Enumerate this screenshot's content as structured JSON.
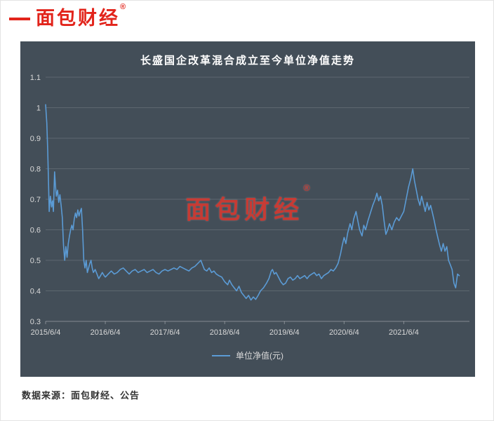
{
  "logo": {
    "text": "面包财经",
    "reg_mark": "®"
  },
  "watermark": {
    "text": "面包财经",
    "reg_mark": "®"
  },
  "footer": {
    "source_text": "数据来源：面包财经、公告"
  },
  "chart_data": {
    "type": "line",
    "title": "长盛国企改革混合成立至今单位净值走势",
    "xlabel": "",
    "ylabel": "",
    "ylim": [
      0.3,
      1.1
    ],
    "xlim": [
      0,
      7.1
    ],
    "grid": true,
    "legend_position": "bottom",
    "panel_bg": "#434e58",
    "line_color": "#5b9bd5",
    "grid_color": "rgba(255,255,255,0.14)",
    "axis_color": "rgba(255,255,255,0.35)",
    "text_color": "#d9d9d9",
    "y_ticks": [
      {
        "v": 0.3,
        "label": "0.3"
      },
      {
        "v": 0.4,
        "label": "0.4"
      },
      {
        "v": 0.5,
        "label": "0.5"
      },
      {
        "v": 0.6,
        "label": "0.6"
      },
      {
        "v": 0.7,
        "label": "0.7"
      },
      {
        "v": 0.8,
        "label": "0.8"
      },
      {
        "v": 0.9,
        "label": "0.9"
      },
      {
        "v": 1.0,
        "label": "1"
      },
      {
        "v": 1.1,
        "label": "1.1"
      }
    ],
    "x_ticks": [
      {
        "t": 0,
        "label": "2015/6/4"
      },
      {
        "t": 1,
        "label": "2016/6/4"
      },
      {
        "t": 2,
        "label": "2017/6/4"
      },
      {
        "t": 3,
        "label": "2018/6/4"
      },
      {
        "t": 4,
        "label": "2019/6/4"
      },
      {
        "t": 5,
        "label": "2020/6/4"
      },
      {
        "t": 6,
        "label": "2021/6/4"
      }
    ],
    "series": [
      {
        "name": "单位净值(元)",
        "points": [
          [
            0,
            1.01
          ],
          [
            0.02,
            0.95
          ],
          [
            0.035,
            0.86
          ],
          [
            0.05,
            0.74
          ],
          [
            0.06,
            0.66
          ],
          [
            0.08,
            0.71
          ],
          [
            0.1,
            0.675
          ],
          [
            0.115,
            0.695
          ],
          [
            0.13,
            0.66
          ],
          [
            0.15,
            0.79
          ],
          [
            0.165,
            0.745
          ],
          [
            0.18,
            0.71
          ],
          [
            0.2,
            0.73
          ],
          [
            0.22,
            0.69
          ],
          [
            0.24,
            0.715
          ],
          [
            0.26,
            0.68
          ],
          [
            0.28,
            0.64
          ],
          [
            0.3,
            0.55
          ],
          [
            0.32,
            0.5
          ],
          [
            0.34,
            0.545
          ],
          [
            0.36,
            0.51
          ],
          [
            0.38,
            0.555
          ],
          [
            0.4,
            0.58
          ],
          [
            0.42,
            0.6
          ],
          [
            0.44,
            0.615
          ],
          [
            0.46,
            0.6
          ],
          [
            0.48,
            0.635
          ],
          [
            0.5,
            0.655
          ],
          [
            0.52,
            0.64
          ],
          [
            0.54,
            0.665
          ],
          [
            0.56,
            0.645
          ],
          [
            0.58,
            0.66
          ],
          [
            0.6,
            0.67
          ],
          [
            0.62,
            0.6
          ],
          [
            0.64,
            0.5
          ],
          [
            0.66,
            0.475
          ],
          [
            0.68,
            0.5
          ],
          [
            0.7,
            0.46
          ],
          [
            0.72,
            0.475
          ],
          [
            0.74,
            0.49
          ],
          [
            0.76,
            0.5
          ],
          [
            0.78,
            0.475
          ],
          [
            0.8,
            0.46
          ],
          [
            0.83,
            0.47
          ],
          [
            0.86,
            0.455
          ],
          [
            0.89,
            0.44
          ],
          [
            0.92,
            0.45
          ],
          [
            0.95,
            0.46
          ],
          [
            0.98,
            0.45
          ],
          [
            1,
            0.445
          ],
          [
            1.05,
            0.455
          ],
          [
            1.1,
            0.465
          ],
          [
            1.15,
            0.455
          ],
          [
            1.2,
            0.46
          ],
          [
            1.25,
            0.47
          ],
          [
            1.3,
            0.475
          ],
          [
            1.35,
            0.465
          ],
          [
            1.4,
            0.455
          ],
          [
            1.45,
            0.465
          ],
          [
            1.5,
            0.47
          ],
          [
            1.55,
            0.46
          ],
          [
            1.6,
            0.465
          ],
          [
            1.65,
            0.47
          ],
          [
            1.7,
            0.46
          ],
          [
            1.75,
            0.465
          ],
          [
            1.8,
            0.47
          ],
          [
            1.85,
            0.46
          ],
          [
            1.9,
            0.455
          ],
          [
            1.95,
            0.465
          ],
          [
            2,
            0.47
          ],
          [
            2.05,
            0.465
          ],
          [
            2.1,
            0.47
          ],
          [
            2.15,
            0.475
          ],
          [
            2.2,
            0.47
          ],
          [
            2.25,
            0.48
          ],
          [
            2.3,
            0.475
          ],
          [
            2.35,
            0.47
          ],
          [
            2.4,
            0.465
          ],
          [
            2.45,
            0.475
          ],
          [
            2.5,
            0.48
          ],
          [
            2.55,
            0.49
          ],
          [
            2.6,
            0.5
          ],
          [
            2.63,
            0.485
          ],
          [
            2.66,
            0.47
          ],
          [
            2.7,
            0.465
          ],
          [
            2.74,
            0.475
          ],
          [
            2.78,
            0.46
          ],
          [
            2.82,
            0.465
          ],
          [
            2.86,
            0.455
          ],
          [
            2.9,
            0.45
          ],
          [
            2.95,
            0.445
          ],
          [
            3,
            0.43
          ],
          [
            3.05,
            0.42
          ],
          [
            3.08,
            0.435
          ],
          [
            3.12,
            0.42
          ],
          [
            3.16,
            0.41
          ],
          [
            3.2,
            0.4
          ],
          [
            3.24,
            0.415
          ],
          [
            3.28,
            0.395
          ],
          [
            3.32,
            0.385
          ],
          [
            3.36,
            0.375
          ],
          [
            3.4,
            0.385
          ],
          [
            3.44,
            0.37
          ],
          [
            3.48,
            0.38
          ],
          [
            3.52,
            0.372
          ],
          [
            3.56,
            0.385
          ],
          [
            3.6,
            0.4
          ],
          [
            3.65,
            0.41
          ],
          [
            3.7,
            0.425
          ],
          [
            3.74,
            0.44
          ],
          [
            3.78,
            0.465
          ],
          [
            3.8,
            0.47
          ],
          [
            3.83,
            0.455
          ],
          [
            3.86,
            0.46
          ],
          [
            3.9,
            0.445
          ],
          [
            3.94,
            0.43
          ],
          [
            3.98,
            0.42
          ],
          [
            4.02,
            0.425
          ],
          [
            4.06,
            0.44
          ],
          [
            4.1,
            0.445
          ],
          [
            4.14,
            0.435
          ],
          [
            4.18,
            0.44
          ],
          [
            4.22,
            0.45
          ],
          [
            4.26,
            0.44
          ],
          [
            4.3,
            0.445
          ],
          [
            4.34,
            0.45
          ],
          [
            4.38,
            0.44
          ],
          [
            4.42,
            0.45
          ],
          [
            4.46,
            0.455
          ],
          [
            4.5,
            0.46
          ],
          [
            4.54,
            0.45
          ],
          [
            4.58,
            0.455
          ],
          [
            4.62,
            0.44
          ],
          [
            4.66,
            0.45
          ],
          [
            4.7,
            0.455
          ],
          [
            4.74,
            0.46
          ],
          [
            4.78,
            0.47
          ],
          [
            4.82,
            0.465
          ],
          [
            4.86,
            0.475
          ],
          [
            4.9,
            0.49
          ],
          [
            4.94,
            0.52
          ],
          [
            4.97,
            0.55
          ],
          [
            5,
            0.575
          ],
          [
            5.03,
            0.555
          ],
          [
            5.06,
            0.59
          ],
          [
            5.1,
            0.62
          ],
          [
            5.13,
            0.6
          ],
          [
            5.16,
            0.635
          ],
          [
            5.2,
            0.66
          ],
          [
            5.23,
            0.63
          ],
          [
            5.26,
            0.6
          ],
          [
            5.3,
            0.58
          ],
          [
            5.33,
            0.615
          ],
          [
            5.36,
            0.6
          ],
          [
            5.4,
            0.63
          ],
          [
            5.44,
            0.655
          ],
          [
            5.48,
            0.68
          ],
          [
            5.52,
            0.7
          ],
          [
            5.55,
            0.72
          ],
          [
            5.58,
            0.695
          ],
          [
            5.61,
            0.71
          ],
          [
            5.64,
            0.68
          ],
          [
            5.67,
            0.63
          ],
          [
            5.7,
            0.585
          ],
          [
            5.73,
            0.6
          ],
          [
            5.76,
            0.62
          ],
          [
            5.8,
            0.6
          ],
          [
            5.84,
            0.625
          ],
          [
            5.88,
            0.64
          ],
          [
            5.92,
            0.63
          ],
          [
            5.96,
            0.645
          ],
          [
            6,
            0.66
          ],
          [
            6.04,
            0.7
          ],
          [
            6.08,
            0.74
          ],
          [
            6.12,
            0.77
          ],
          [
            6.15,
            0.8
          ],
          [
            6.18,
            0.76
          ],
          [
            6.21,
            0.73
          ],
          [
            6.24,
            0.7
          ],
          [
            6.27,
            0.68
          ],
          [
            6.3,
            0.71
          ],
          [
            6.33,
            0.685
          ],
          [
            6.36,
            0.66
          ],
          [
            6.39,
            0.69
          ],
          [
            6.42,
            0.665
          ],
          [
            6.45,
            0.68
          ],
          [
            6.48,
            0.655
          ],
          [
            6.51,
            0.63
          ],
          [
            6.54,
            0.6
          ],
          [
            6.57,
            0.575
          ],
          [
            6.6,
            0.55
          ],
          [
            6.63,
            0.53
          ],
          [
            6.66,
            0.555
          ],
          [
            6.69,
            0.53
          ],
          [
            6.72,
            0.545
          ],
          [
            6.75,
            0.5
          ],
          [
            6.78,
            0.485
          ],
          [
            6.81,
            0.47
          ],
          [
            6.84,
            0.425
          ],
          [
            6.87,
            0.41
          ],
          [
            6.9,
            0.455
          ],
          [
            6.93,
            0.45
          ]
        ]
      }
    ]
  }
}
